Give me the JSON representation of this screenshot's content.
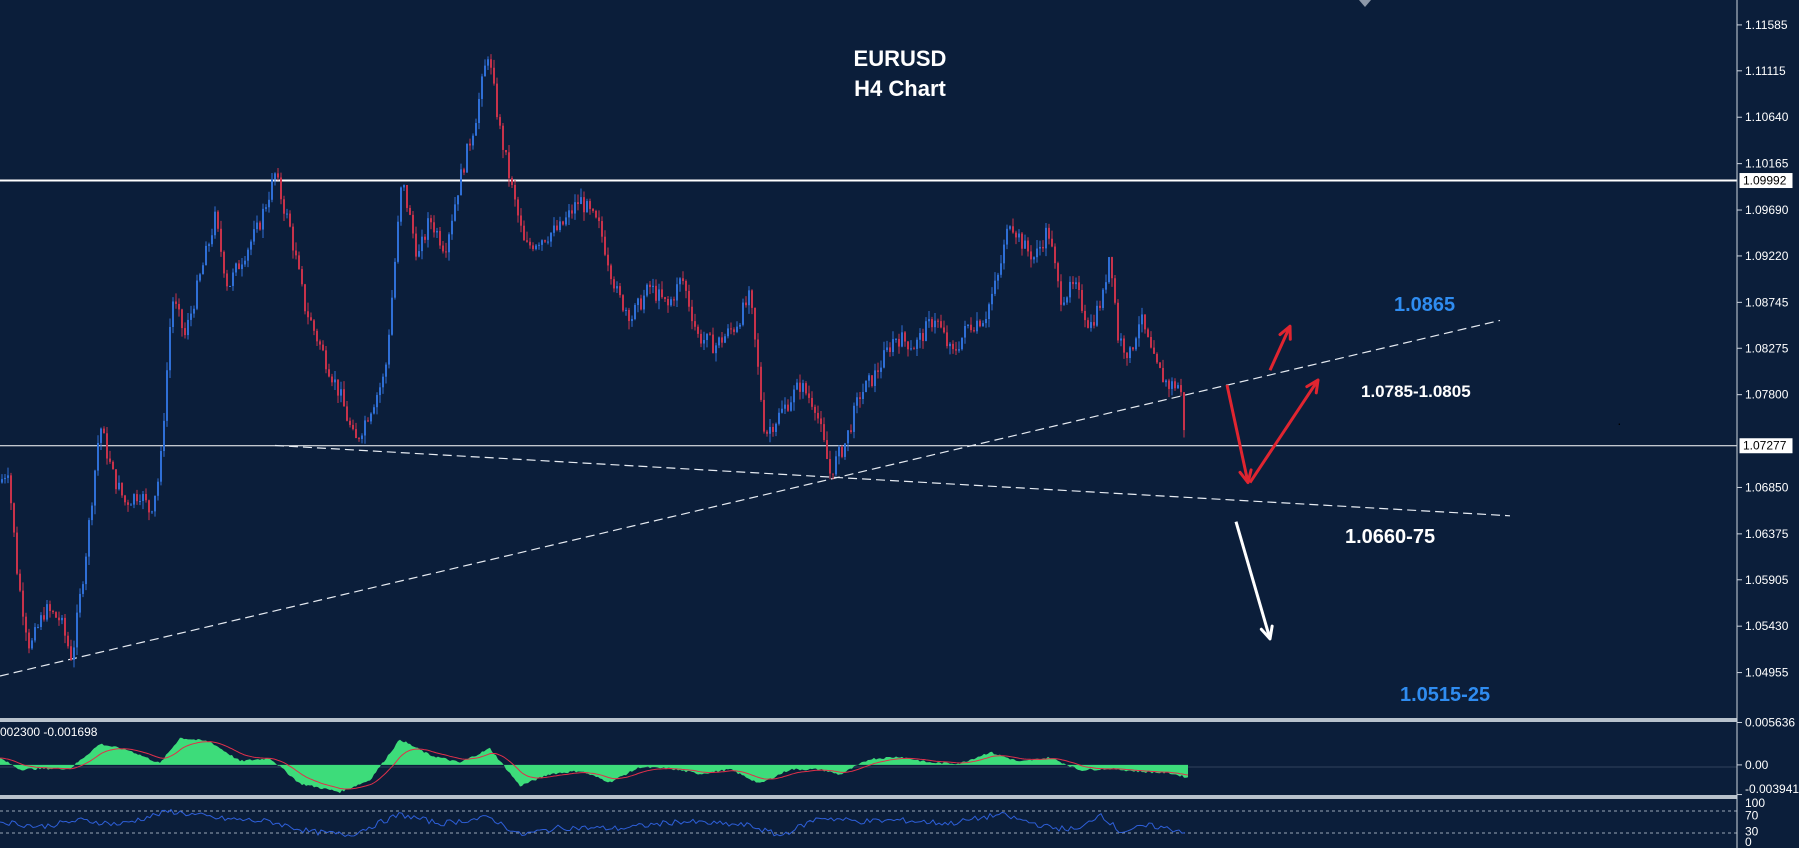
{
  "chart_data": {
    "type": "candlestick",
    "title": "EURUSD",
    "subtitle": "H4 Chart",
    "colors": {
      "background": "#0b1e3a",
      "bull_candle": "#2f6fd6",
      "bear_candle": "#c8324a",
      "macd_hist": "#3ddc7a",
      "macd_signal": "#e0304a",
      "rsi_line": "#2e5fd8",
      "annotation_blue": "#2f8cf0",
      "annotation_red": "#e02530",
      "annotation_white": "#ffffff"
    },
    "price_axis": {
      "ylim": [
        1.0449,
        1.1184
      ],
      "tick_labels": [
        "1.11585",
        "1.11115",
        "1.10640",
        "1.10165",
        "1.09690",
        "1.09220",
        "1.08745",
        "1.08275",
        "1.07800",
        "1.06850",
        "1.06375",
        "1.05905",
        "1.05430",
        "1.04955"
      ],
      "price_tags": [
        "1.09992",
        "1.07277"
      ]
    },
    "horizontal_levels": [
      1.09992,
      1.07277
    ],
    "trendlines": [
      {
        "style": "dashed",
        "from": [
          0,
          1.0492
        ],
        "to": [
          1500,
          1.0856
        ]
      },
      {
        "style": "dashed",
        "from": [
          275,
          1.0728
        ],
        "to": [
          1510,
          1.0656
        ]
      }
    ],
    "price_path": [
      [
        0,
        1.069
      ],
      [
        8,
        1.0705
      ],
      [
        18,
        1.059
      ],
      [
        30,
        1.052
      ],
      [
        45,
        1.056
      ],
      [
        60,
        1.055
      ],
      [
        72,
        1.051
      ],
      [
        85,
        1.061
      ],
      [
        100,
        1.075
      ],
      [
        112,
        1.07
      ],
      [
        125,
        1.067
      ],
      [
        140,
        1.068
      ],
      [
        150,
        1.066
      ],
      [
        160,
        1.07
      ],
      [
        166,
        1.079
      ],
      [
        172,
        1.088
      ],
      [
        185,
        1.084
      ],
      [
        200,
        1.09
      ],
      [
        215,
        1.096
      ],
      [
        228,
        1.089
      ],
      [
        242,
        1.092
      ],
      [
        258,
        1.095
      ],
      [
        275,
        1.1005
      ],
      [
        290,
        1.095
      ],
      [
        305,
        1.087
      ],
      [
        320,
        1.083
      ],
      [
        340,
        1.078
      ],
      [
        355,
        1.073
      ],
      [
        368,
        1.076
      ],
      [
        385,
        1.08
      ],
      [
        392,
        1.088
      ],
      [
        402,
        1.1
      ],
      [
        418,
        1.092
      ],
      [
        430,
        1.096
      ],
      [
        445,
        1.093
      ],
      [
        460,
        1.1
      ],
      [
        475,
        1.106
      ],
      [
        488,
        1.113
      ],
      [
        500,
        1.105
      ],
      [
        512,
        1.099
      ],
      [
        525,
        1.093
      ],
      [
        540,
        1.094
      ],
      [
        560,
        1.095
      ],
      [
        580,
        1.098
      ],
      [
        600,
        1.095
      ],
      [
        618,
        1.088
      ],
      [
        632,
        1.086
      ],
      [
        650,
        1.089
      ],
      [
        668,
        1.087
      ],
      [
        682,
        1.09
      ],
      [
        698,
        1.084
      ],
      [
        715,
        1.083
      ],
      [
        735,
        1.085
      ],
      [
        750,
        1.088
      ],
      [
        765,
        1.074
      ],
      [
        780,
        1.076
      ],
      [
        800,
        1.079
      ],
      [
        815,
        1.077
      ],
      [
        830,
        1.07
      ],
      [
        845,
        1.073
      ],
      [
        860,
        1.078
      ],
      [
        875,
        1.08
      ],
      [
        895,
        1.084
      ],
      [
        915,
        1.083
      ],
      [
        935,
        1.086
      ],
      [
        952,
        1.082
      ],
      [
        968,
        1.085
      ],
      [
        985,
        1.086
      ],
      [
        998,
        1.09
      ],
      [
        1010,
        1.096
      ],
      [
        1025,
        1.093
      ],
      [
        1035,
        1.092
      ],
      [
        1048,
        1.095
      ],
      [
        1060,
        1.088
      ],
      [
        1075,
        1.089
      ],
      [
        1090,
        1.085
      ],
      [
        1103,
        1.088
      ],
      [
        1110,
        1.093
      ],
      [
        1118,
        1.084
      ],
      [
        1130,
        1.082
      ],
      [
        1140,
        1.086
      ],
      [
        1155,
        1.081
      ],
      [
        1168,
        1.079
      ],
      [
        1180,
        1.079
      ],
      [
        1186,
        1.0727
      ]
    ],
    "annotations": [
      {
        "text": "1.0865",
        "color": "blue"
      },
      {
        "text": "1.0785-1.0805",
        "color": "white"
      },
      {
        "text": "1.0660-75",
        "color": "white"
      },
      {
        "text": "1.0515-25",
        "color": "blue"
      }
    ],
    "arrows": [
      {
        "color": "red",
        "from": [
          1270,
          1.0805
        ],
        "to": [
          1290,
          1.085
        ]
      },
      {
        "color": "red",
        "from": [
          1227,
          1.079
        ],
        "to": [
          1248,
          1.069
        ]
      },
      {
        "color": "red",
        "from": [
          1250,
          1.069
        ],
        "to": [
          1318,
          1.0795
        ]
      },
      {
        "color": "white",
        "from": [
          1236,
          1.065
        ],
        "to": [
          1270,
          1.053
        ]
      }
    ],
    "macd": {
      "header": "002300 -0.001698",
      "ylim": [
        -0.004,
        0.0057
      ],
      "tick_labels": [
        "0.005636",
        "0.00",
        "-0.003941"
      ],
      "path": [
        [
          0,
          0.0009
        ],
        [
          20,
          -0.0006
        ],
        [
          45,
          -0.0005
        ],
        [
          70,
          -0.0005
        ],
        [
          100,
          0.0028
        ],
        [
          130,
          0.0019
        ],
        [
          160,
          0.0002
        ],
        [
          180,
          0.0036
        ],
        [
          210,
          0.0031
        ],
        [
          240,
          0.0005
        ],
        [
          270,
          0.0009
        ],
        [
          300,
          -0.0025
        ],
        [
          340,
          -0.0036
        ],
        [
          370,
          -0.002
        ],
        [
          400,
          0.0034
        ],
        [
          430,
          0.0013
        ],
        [
          460,
          0.0003
        ],
        [
          490,
          0.0022
        ],
        [
          520,
          -0.0028
        ],
        [
          550,
          -0.0012
        ],
        [
          580,
          -0.0008
        ],
        [
          610,
          -0.0023
        ],
        [
          640,
          -0.0003
        ],
        [
          670,
          -0.0005
        ],
        [
          700,
          -0.0012
        ],
        [
          730,
          -0.0006
        ],
        [
          760,
          -0.0025
        ],
        [
          790,
          -0.0006
        ],
        [
          820,
          -0.0006
        ],
        [
          840,
          -0.0013
        ],
        [
          870,
          0.0008
        ],
        [
          900,
          0.0011
        ],
        [
          930,
          0.0003
        ],
        [
          960,
          0.0002
        ],
        [
          990,
          0.0017
        ],
        [
          1020,
          0.0004
        ],
        [
          1050,
          0.001
        ],
        [
          1080,
          -0.0007
        ],
        [
          1110,
          -0.0005
        ],
        [
          1140,
          -0.0009
        ],
        [
          1170,
          -0.0011
        ],
        [
          1188,
          -0.0017
        ]
      ]
    },
    "rsi": {
      "ylim": [
        0,
        100
      ],
      "tick_labels": [
        "100",
        "70",
        "30",
        "0"
      ],
      "path": [
        [
          0,
          55
        ],
        [
          40,
          42
        ],
        [
          80,
          58
        ],
        [
          120,
          48
        ],
        [
          170,
          80
        ],
        [
          220,
          62
        ],
        [
          270,
          55
        ],
        [
          310,
          30
        ],
        [
          350,
          22
        ],
        [
          400,
          72
        ],
        [
          440,
          50
        ],
        [
          490,
          65
        ],
        [
          520,
          22
        ],
        [
          560,
          40
        ],
        [
          620,
          38
        ],
        [
          680,
          55
        ],
        [
          750,
          45
        ],
        [
          780,
          20
        ],
        [
          820,
          65
        ],
        [
          860,
          55
        ],
        [
          900,
          58
        ],
        [
          950,
          50
        ],
        [
          1000,
          72
        ],
        [
          1050,
          40
        ],
        [
          1080,
          35
        ],
        [
          1100,
          75
        ],
        [
          1120,
          30
        ],
        [
          1150,
          45
        ],
        [
          1186,
          30
        ]
      ]
    }
  }
}
